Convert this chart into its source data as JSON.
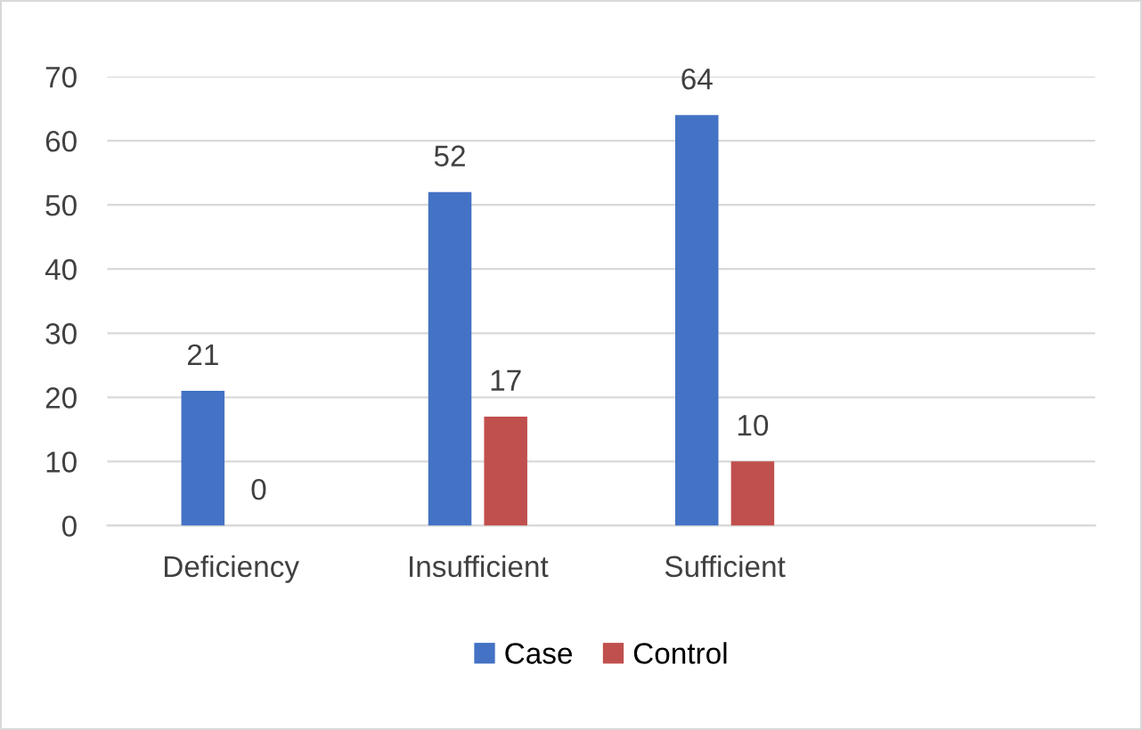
{
  "chart_data": {
    "type": "bar",
    "categories": [
      "Deficiency",
      "Insufficient",
      "Sufficient",
      null
    ],
    "series": [
      {
        "name": "Case",
        "color": "#4472c4",
        "values": [
          21,
          52,
          64,
          null
        ]
      },
      {
        "name": "Control",
        "color": "#c0504d",
        "values": [
          0,
          17,
          10,
          null
        ]
      }
    ],
    "ylim": [
      0,
      70
    ],
    "yticks": [
      0,
      10,
      20,
      30,
      40,
      50,
      60,
      70
    ],
    "grid": "y",
    "legend": "bottom",
    "data_labels": true
  }
}
